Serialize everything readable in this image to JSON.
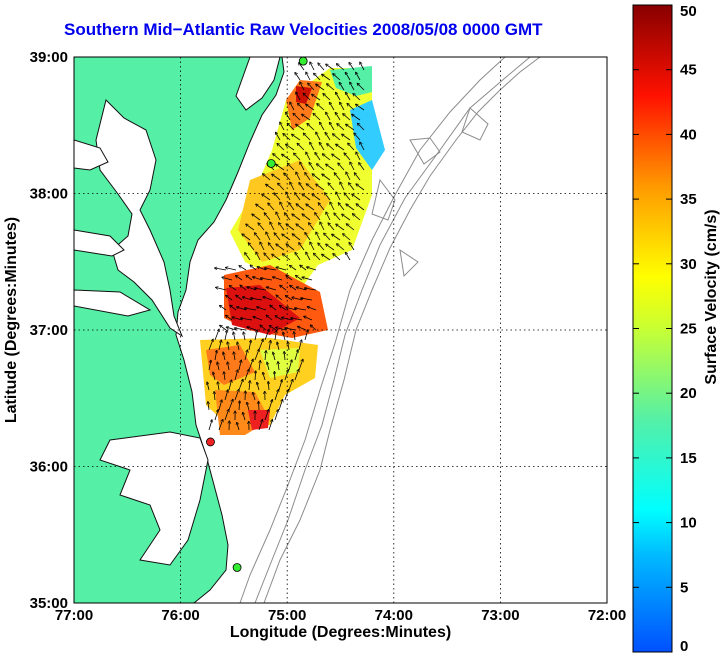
{
  "title": "Southern Mid−Atlantic Raw Velocities 2008/05/08 0000 GMT",
  "xlabel": "Longitude (Degrees:Minutes)",
  "ylabel": "Latitude (Degrees:Minutes)",
  "colorbar": {
    "label": "Surface Velocity (cm/s)",
    "min": 0,
    "max": 50,
    "ticks": [
      "0",
      "5",
      "10",
      "15",
      "20",
      "25",
      "30",
      "35",
      "40",
      "45",
      "50"
    ]
  },
  "axes": {
    "x_ticks": [
      "77:00",
      "76:00",
      "75:00",
      "74:00",
      "73:00",
      "72:00"
    ],
    "y_ticks": [
      "39:00",
      "38:00",
      "37:00",
      "36:00",
      "35:00"
    ],
    "lon_range": [
      -77,
      -72
    ],
    "lat_range": [
      35,
      39
    ]
  },
  "colors": {
    "land": "#55f0a6",
    "coast": "#111111",
    "bathymetry": "#8c8c8c",
    "title": "#0000ee"
  },
  "stations": [
    {
      "lon": -74.85,
      "lat": 38.97,
      "color": "#33ee33"
    },
    {
      "lon": -75.15,
      "lat": 38.22,
      "color": "#33ee33"
    },
    {
      "lon": -75.72,
      "lat": 36.18,
      "color": "#ee2222"
    },
    {
      "lon": -75.47,
      "lat": 35.26,
      "color": "#33ee33"
    }
  ]
}
